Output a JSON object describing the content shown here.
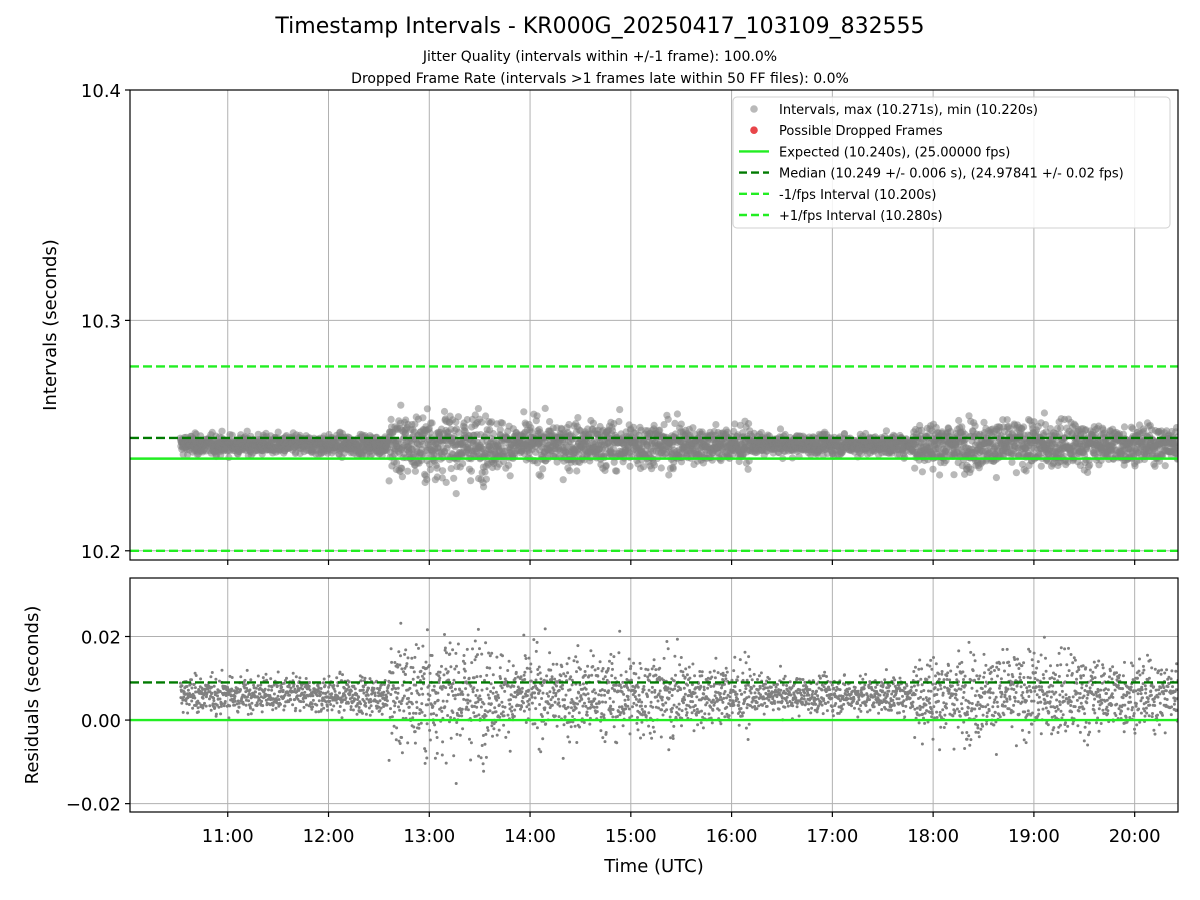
{
  "title": "Timestamp Intervals - KR000G_20250417_103109_832555",
  "subtitle_1": "Jitter Quality (intervals within +/-1 frame): 100.0%",
  "subtitle_2": "Dropped Frame Rate (intervals >1 frames late within 50 FF files): 0.0%",
  "colors": {
    "points": "#808080",
    "dropped": "#e8454a",
    "expected": "#22ee22",
    "median": "#007a00",
    "bounds": "#22ee22",
    "grid": "#b0b0b0"
  },
  "chart_data": [
    {
      "type": "scatter",
      "ylabel": "Intervals (seconds)",
      "xlim_hours": [
        10.03,
        20.43
      ],
      "ylim": [
        10.196,
        10.4
      ],
      "yticks": [
        10.2,
        10.3,
        10.4
      ],
      "ytick_labels": [
        "10.2",
        "10.3",
        "10.4"
      ],
      "grid": true,
      "legend_position": "upper right",
      "point_count": 3600,
      "x_range_hours": [
        10.53,
        20.43
      ],
      "center_expected": 10.24,
      "center_median": 10.249,
      "max_interval": 10.271,
      "min_interval": 10.22,
      "reference_lines": [
        {
          "name": "Expected (10.240s), (25.00000 fps)",
          "value": 10.24,
          "style": "solid"
        },
        {
          "name": "Median (10.249 +/- 0.006 s), (24.97841 +/- 0.02 fps)",
          "value": 10.249,
          "style": "dashed-dark"
        },
        {
          "name": "-1/fps Interval (10.200s)",
          "value": 10.2,
          "style": "dashed"
        },
        {
          "name": "+1/fps Interval (10.280s)",
          "value": 10.28,
          "style": "dashed"
        }
      ],
      "legend": [
        {
          "label": "Intervals, max (10.271s), min (10.220s)",
          "kind": "marker-gray"
        },
        {
          "label": "Possible Dropped Frames",
          "kind": "marker-red"
        },
        {
          "label": "Expected (10.240s), (25.00000 fps)",
          "kind": "line-solid"
        },
        {
          "label": "Median (10.249 +/- 0.006 s), (24.97841 +/- 0.02 fps)",
          "kind": "line-dashed-dark"
        },
        {
          "label": "-1/fps Interval (10.200s)",
          "kind": "line-dashed"
        },
        {
          "label": "+1/fps Interval (10.280s)",
          "kind": "line-dashed"
        }
      ]
    },
    {
      "type": "scatter",
      "ylabel": "Residuals (seconds)",
      "xlabel": "Time (UTC)",
      "xlim_hours": [
        10.03,
        20.43
      ],
      "ylim": [
        -0.022,
        0.034
      ],
      "yticks": [
        -0.02,
        0.0,
        0.02
      ],
      "ytick_labels": [
        "−0.02",
        "0.00",
        "0.02"
      ],
      "xticks_hours": [
        11,
        12,
        13,
        14,
        15,
        16,
        17,
        18,
        19,
        20
      ],
      "xtick_labels": [
        "11:00",
        "12:00",
        "13:00",
        "14:00",
        "15:00",
        "16:00",
        "17:00",
        "18:00",
        "19:00",
        "20:00"
      ],
      "reference_lines": [
        {
          "value": 0.0,
          "style": "solid"
        },
        {
          "value": 0.009,
          "style": "dashed-dark"
        }
      ],
      "grid": true
    }
  ]
}
